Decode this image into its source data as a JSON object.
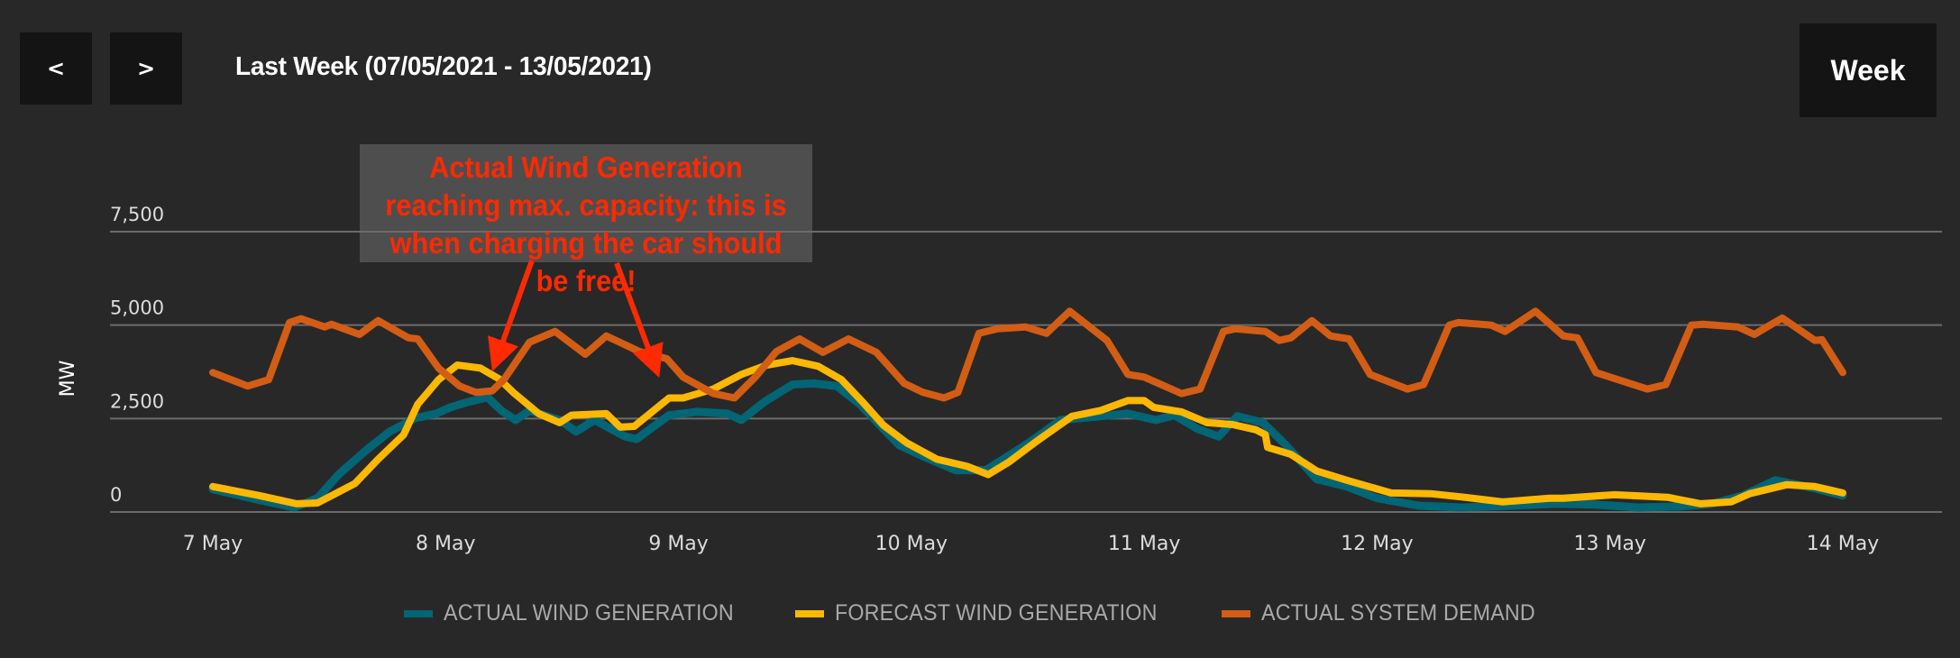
{
  "header": {
    "prev_label": "<",
    "next_label": ">",
    "range_title": "Last Week (07/05/2021 - 13/05/2021)",
    "period_button": "Week"
  },
  "annotation": {
    "text": "Actual Wind Generation reaching max. capacity: this is when charging the car should be free!",
    "color": "#ff2a00",
    "arrow_targets_day": [
      1.2,
      2.25
    ]
  },
  "chart_data": {
    "type": "line",
    "title": "",
    "xlabel": "",
    "ylabel": "MW",
    "x_unit": "days since 7 May 2021 00:00",
    "xlim": [
      0,
      7
    ],
    "ylim": [
      0,
      7500
    ],
    "grid": true,
    "legend_position": "bottom-center",
    "x_ticks": [
      {
        "x": 0,
        "label": "7 May"
      },
      {
        "x": 1,
        "label": "8 May"
      },
      {
        "x": 2,
        "label": "9 May"
      },
      {
        "x": 3,
        "label": "10 May"
      },
      {
        "x": 4,
        "label": "11 May"
      },
      {
        "x": 5,
        "label": "12 May"
      },
      {
        "x": 6,
        "label": "13 May"
      },
      {
        "x": 7,
        "label": "14 May"
      }
    ],
    "y_ticks": [
      {
        "y": 0,
        "label": "0"
      },
      {
        "y": 2500,
        "label": "2,500"
      },
      {
        "y": 5000,
        "label": "5,000"
      },
      {
        "y": 7500,
        "label": "7,500"
      }
    ],
    "series": [
      {
        "name": "ACTUAL WIND GENERATION",
        "color": "#006575",
        "x": [
          0.0,
          0.2,
          0.35,
          0.45,
          0.54,
          0.66,
          0.76,
          0.87,
          0.96,
          1.02,
          1.1,
          1.18,
          1.24,
          1.3,
          1.36,
          1.49,
          1.56,
          1.64,
          1.77,
          1.82,
          1.96,
          2.08,
          2.21,
          2.27,
          2.37,
          2.49,
          2.58,
          2.68,
          2.78,
          2.88,
          2.95,
          3.05,
          3.19,
          3.32,
          3.5,
          3.64,
          3.81,
          3.93,
          4.05,
          4.13,
          4.23,
          4.32,
          4.4,
          4.51,
          4.61,
          4.74,
          4.87,
          5.0,
          5.18,
          5.36,
          5.51,
          5.77,
          5.93,
          6.12,
          6.31,
          6.44,
          6.57,
          6.71,
          6.88,
          7.0
        ],
        "values": [
          610,
          320,
          120,
          370,
          1000,
          1660,
          2150,
          2510,
          2630,
          2800,
          2950,
          3070,
          2710,
          2460,
          2710,
          2460,
          2150,
          2460,
          2020,
          1950,
          2590,
          2680,
          2630,
          2460,
          2950,
          3410,
          3440,
          3370,
          2880,
          2220,
          1780,
          1490,
          1120,
          1120,
          1830,
          2460,
          2560,
          2630,
          2460,
          2590,
          2220,
          2020,
          2560,
          2390,
          1780,
          880,
          680,
          370,
          170,
          120,
          150,
          220,
          200,
          120,
          150,
          220,
          440,
          850,
          630,
          440
        ]
      },
      {
        "name": "FORECAST WIND GENERATION",
        "color": "#ffb800",
        "x": [
          0.0,
          0.2,
          0.36,
          0.45,
          0.61,
          0.71,
          0.82,
          0.88,
          0.97,
          1.05,
          1.15,
          1.23,
          1.29,
          1.4,
          1.49,
          1.54,
          1.69,
          1.75,
          1.81,
          1.96,
          2.02,
          2.15,
          2.27,
          2.38,
          2.49,
          2.6,
          2.7,
          2.79,
          2.88,
          2.98,
          3.11,
          3.24,
          3.33,
          3.42,
          3.54,
          3.69,
          3.81,
          3.93,
          4.0,
          4.04,
          4.16,
          4.27,
          4.38,
          4.48,
          4.52,
          4.53,
          4.63,
          4.74,
          4.87,
          5.06,
          5.23,
          5.38,
          5.54,
          5.74,
          5.8,
          6.02,
          6.25,
          6.39,
          6.52,
          6.6,
          6.76,
          6.88,
          7.0
        ],
        "values": [
          680,
          440,
          220,
          240,
          760,
          1410,
          2070,
          2880,
          3540,
          3930,
          3850,
          3560,
          3200,
          2630,
          2390,
          2590,
          2630,
          2270,
          2290,
          3050,
          3050,
          3290,
          3680,
          3930,
          4050,
          3900,
          3540,
          2950,
          2320,
          1850,
          1410,
          1220,
          1000,
          1340,
          1900,
          2560,
          2710,
          2980,
          2980,
          2800,
          2680,
          2390,
          2340,
          2200,
          2070,
          1730,
          1540,
          1100,
          850,
          510,
          490,
          390,
          270,
          370,
          370,
          460,
          390,
          220,
          270,
          490,
          730,
          680,
          510
        ]
      },
      {
        "name": "ACTUAL SYSTEM DEMAND",
        "color": "#d35d14",
        "x": [
          0.0,
          0.15,
          0.24,
          0.33,
          0.38,
          0.48,
          0.51,
          0.63,
          0.71,
          0.84,
          0.88,
          0.97,
          1.06,
          1.13,
          1.2,
          1.25,
          1.36,
          1.47,
          1.6,
          1.69,
          1.83,
          1.95,
          2.02,
          2.15,
          2.24,
          2.33,
          2.42,
          2.52,
          2.62,
          2.73,
          2.85,
          2.97,
          3.05,
          3.14,
          3.2,
          3.29,
          3.37,
          3.49,
          3.58,
          3.68,
          3.84,
          3.93,
          4.0,
          4.16,
          4.24,
          4.34,
          4.39,
          4.52,
          4.58,
          4.63,
          4.72,
          4.8,
          4.88,
          4.97,
          5.13,
          5.2,
          5.31,
          5.35,
          5.49,
          5.55,
          5.68,
          5.8,
          5.86,
          5.94,
          6.16,
          6.24,
          6.35,
          6.4,
          6.55,
          6.62,
          6.74,
          6.88,
          6.91,
          7.0
        ],
        "values": [
          3730,
          3370,
          3540,
          5070,
          5170,
          4950,
          5020,
          4750,
          5120,
          4660,
          4630,
          3850,
          3370,
          3200,
          3240,
          3540,
          4540,
          4830,
          4220,
          4710,
          4300,
          4100,
          3610,
          3170,
          3050,
          3610,
          4290,
          4630,
          4270,
          4630,
          4270,
          3440,
          3200,
          3050,
          3200,
          4780,
          4900,
          4950,
          4780,
          5370,
          4590,
          3680,
          3610,
          3170,
          3290,
          4830,
          4900,
          4830,
          4590,
          4660,
          5120,
          4710,
          4630,
          3680,
          3290,
          3410,
          5000,
          5070,
          5000,
          4830,
          5370,
          4710,
          4660,
          3730,
          3290,
          3410,
          5000,
          5020,
          4950,
          4750,
          5190,
          4590,
          4610,
          3730
        ]
      }
    ]
  }
}
